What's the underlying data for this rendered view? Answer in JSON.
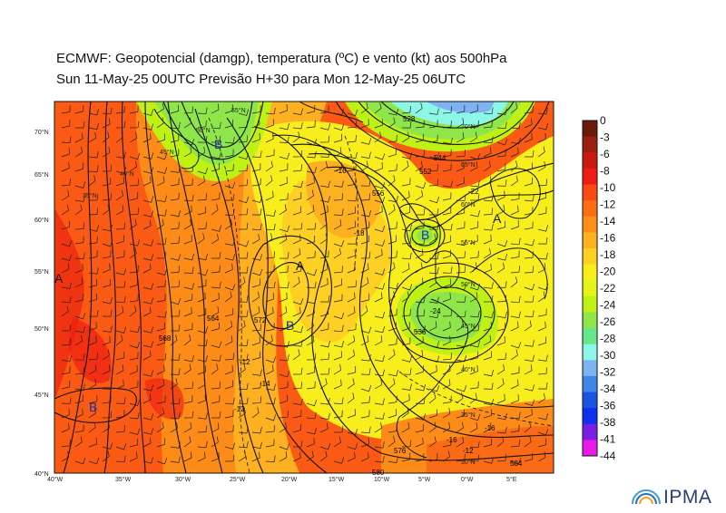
{
  "title_line1": "ECMWF:  Geopotencial (damgp), temperatura (ºC) e vento (kt) aos 500hPa",
  "title_line2": "Sun 11-May-25 00UTC Previsão H+30 para Mon 12-May-25 06UTC",
  "lon_ticks": [
    "40°W",
    "35°W",
    "30°W",
    "25°W",
    "20°W",
    "15°W",
    "10°W",
    "5°W",
    "0°W",
    "5°E"
  ],
  "lat_ticks": [
    "70°N",
    "65°N",
    "60°N",
    "55°N",
    "50°N",
    "45°N",
    "40°N"
  ],
  "grid_labels": [
    "55°N",
    "50°N",
    "45°N",
    "40°N",
    "35°N",
    "70°N",
    "65°N",
    "60°N",
    "55°N",
    "50°N",
    "45°N",
    "40°N",
    "35°N",
    "30°N"
  ],
  "contour_labels": [
    "-16",
    "-18",
    "-22",
    "-24",
    "-12",
    "-12",
    "-16",
    "-16",
    "-12",
    "-14",
    "564",
    "568",
    "572",
    "576",
    "580",
    "584",
    "556",
    "552",
    "544",
    "528",
    "536"
  ],
  "pressure_centers": [
    {
      "label": "A",
      "kind": "high"
    },
    {
      "label": "A",
      "kind": "high"
    },
    {
      "label": "A",
      "kind": "high"
    },
    {
      "label": "B",
      "kind": "low"
    },
    {
      "label": "B",
      "kind": "low"
    },
    {
      "label": "B",
      "kind": "low"
    },
    {
      "label": "B",
      "kind": "low"
    }
  ],
  "colorbar": {
    "labels": [
      "0",
      "-3",
      "-6",
      "-8",
      "-10",
      "-12",
      "-14",
      "-16",
      "-18",
      "-20",
      "-22",
      "-24",
      "-26",
      "-28",
      "-30",
      "-32",
      "-34",
      "-36",
      "-38",
      "-41",
      "-44"
    ],
    "colors": [
      "#6b1a0a",
      "#9c1e0f",
      "#c81a10",
      "#ee1c12",
      "#fb4a12",
      "#fc6e14",
      "#fd8e1a",
      "#fdb020",
      "#fdd023",
      "#f8ee1c",
      "#e4f418",
      "#bff214",
      "#8ee64a",
      "#66e88a",
      "#8cf7e6",
      "#7fb2f0",
      "#3e86ea",
      "#1a54e0",
      "#1030f0",
      "#7a1ee4",
      "#e81ae8"
    ]
  },
  "logo": {
    "text": "IPMA"
  }
}
